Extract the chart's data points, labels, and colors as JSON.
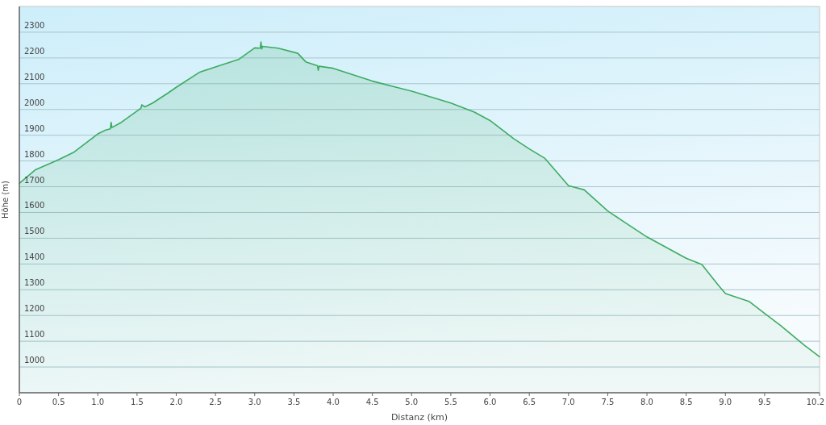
{
  "chart_data": {
    "type": "area",
    "xlabel": "Distanz (km)",
    "ylabel": "Höhe (m)",
    "xlim": [
      0,
      10.2
    ],
    "ylim": [
      900,
      2400
    ],
    "xticks": [
      0,
      {
        "value": 0.5,
        "label": "0.5"
      },
      {
        "value": 1,
        "label": "1.0"
      },
      {
        "value": 1.5,
        "label": "1.5"
      },
      {
        "value": 2,
        "label": "2.0"
      },
      {
        "value": 2.5,
        "label": "2.5"
      },
      {
        "value": 3,
        "label": "3.0"
      },
      {
        "value": 3.5,
        "label": "3.5"
      },
      {
        "value": 4,
        "label": "4.0"
      },
      {
        "value": 4.5,
        "label": "4.5"
      },
      {
        "value": 5,
        "label": "5.0"
      },
      {
        "value": 5.5,
        "label": "5.5"
      },
      {
        "value": 6,
        "label": "6.0"
      },
      {
        "value": 6.5,
        "label": "6.5"
      },
      {
        "value": 7,
        "label": "7.0"
      },
      {
        "value": 7.5,
        "label": "7.5"
      },
      {
        "value": 8,
        "label": "8.0"
      },
      {
        "value": 8.5,
        "label": "8.5"
      },
      {
        "value": 9,
        "label": "9.0"
      },
      {
        "value": 9.5,
        "label": "9.5"
      },
      10.2
    ],
    "yticks": [
      1000,
      1100,
      1200,
      1300,
      1400,
      1500,
      1600,
      1700,
      1800,
      1900,
      2000,
      2100,
      2200,
      2300
    ],
    "grid": "y",
    "series": [
      {
        "color": "#3dab62",
        "x": [
          0,
          0.2,
          0.5,
          0.7,
          1.0,
          1.1,
          1.16,
          1.17,
          1.18,
          1.3,
          1.5,
          1.55,
          1.56,
          1.6,
          1.7,
          1.9,
          2.0,
          2.3,
          2.5,
          2.8,
          3.0,
          3.07,
          3.08,
          3.09,
          3.1,
          3.3,
          3.55,
          3.65,
          3.8,
          3.81,
          3.82,
          4.0,
          4.5,
          5.0,
          5.5,
          5.8,
          6.0,
          6.3,
          6.5,
          6.7,
          7.0,
          7.2,
          7.5,
          7.7,
          8.0,
          8.5,
          8.7,
          8.9,
          9.0,
          9.3,
          9.5,
          9.7,
          10.0,
          10.2
        ],
        "values": [
          1713,
          1765,
          1805,
          1835,
          1905,
          1920,
          1925,
          1950,
          1930,
          1950,
          1994,
          2005,
          2018,
          2010,
          2025,
          2065,
          2086,
          2145,
          2165,
          2195,
          2239,
          2238,
          2262,
          2235,
          2245,
          2238,
          2218,
          2185,
          2170,
          2152,
          2168,
          2160,
          2110,
          2071,
          2025,
          1990,
          1957,
          1887,
          1847,
          1810,
          1704,
          1688,
          1606,
          1565,
          1505,
          1422,
          1398,
          1321,
          1285,
          1255,
          1208,
          1162,
          1086,
          1040
        ]
      }
    ]
  }
}
